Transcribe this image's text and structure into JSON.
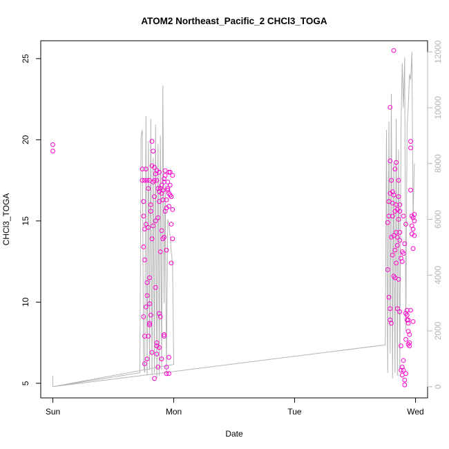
{
  "chart_data": {
    "type": "scatter",
    "title": "ATOM2 Northeast_Pacific_2 CHCl3_TOGA",
    "xlabel": "Date",
    "ylabel": "CHCl3_TOGA",
    "x_unit": "days since Sun 00:00",
    "xlim": [
      -0.1,
      3.1
    ],
    "ylim": [
      4.1,
      26.1
    ],
    "y2lim": [
      -400,
      12400
    ],
    "x_ticks": [
      {
        "value": 0,
        "label": "Sun"
      },
      {
        "value": 1,
        "label": "Mon"
      },
      {
        "value": 2,
        "label": "Tue"
      },
      {
        "value": 3,
        "label": "Wed"
      }
    ],
    "y_ticks": [
      5,
      10,
      15,
      20,
      25
    ],
    "y2_ticks": [
      0,
      2000,
      4000,
      6000,
      8000,
      10000,
      12000
    ],
    "colors": {
      "points": "#ff00cc",
      "line": "#b3b3b3",
      "axis": "#000000",
      "right_axis": "#b3b3b3"
    },
    "grid": false,
    "legend": "none",
    "series": [
      {
        "kind": "points",
        "axis": "left",
        "x": [
          0.0,
          0.0,
          0.74,
          0.74,
          0.75,
          0.75,
          0.75,
          0.75,
          0.76,
          0.76,
          0.76,
          0.76,
          0.77,
          0.77,
          0.77,
          0.78,
          0.78,
          0.78,
          0.79,
          0.79,
          0.79,
          0.8,
          0.8,
          0.8,
          0.8,
          0.81,
          0.81,
          0.81,
          0.82,
          0.82,
          0.82,
          0.83,
          0.83,
          0.83,
          0.84,
          0.84,
          0.84,
          0.85,
          0.85,
          0.85,
          0.86,
          0.86,
          0.86,
          0.87,
          0.87,
          0.87,
          0.88,
          0.88,
          0.88,
          0.89,
          0.89,
          0.89,
          0.9,
          0.9,
          0.9,
          0.91,
          0.91,
          0.91,
          0.92,
          0.92,
          0.92,
          0.93,
          0.93,
          0.93,
          0.94,
          0.94,
          0.94,
          0.95,
          0.95,
          0.95,
          0.96,
          0.96,
          0.96,
          0.97,
          0.97,
          0.97,
          0.98,
          0.98,
          0.98,
          0.99,
          0.99,
          0.99,
          0.76,
          0.78,
          0.8,
          0.82,
          0.86,
          0.88,
          0.9,
          0.92,
          0.94,
          0.96,
          0.84,
          0.86,
          0.88,
          0.92,
          0.94,
          0.96,
          2.77,
          2.77,
          2.78,
          2.78,
          2.78,
          2.79,
          2.79,
          2.79,
          2.8,
          2.8,
          2.8,
          2.81,
          2.81,
          2.81,
          2.82,
          2.82,
          2.82,
          2.83,
          2.83,
          2.83,
          2.84,
          2.84,
          2.84,
          2.85,
          2.85,
          2.85,
          2.86,
          2.86,
          2.86,
          2.87,
          2.87,
          2.87,
          2.88,
          2.88,
          2.88,
          2.89,
          2.89,
          2.89,
          2.9,
          2.9,
          2.9,
          2.91,
          2.91,
          2.91,
          2.92,
          2.92,
          2.92,
          2.93,
          2.93,
          2.93,
          2.94,
          2.94,
          2.94,
          2.95,
          2.95,
          2.95,
          2.96,
          2.96,
          2.96,
          2.97,
          2.97,
          2.97,
          2.98,
          2.98,
          2.98,
          2.99,
          2.99,
          2.99,
          2.84,
          2.79,
          2.82,
          2.86,
          2.87,
          2.9,
          2.92,
          2.94,
          2.96,
          2.98,
          2.79,
          2.81,
          2.83,
          2.85,
          2.87,
          2.89
        ],
        "y": [
          19.7,
          19.3,
          18.2,
          17.5,
          16.2,
          15.3,
          13.4,
          9.1,
          12.6,
          7.9,
          17.5,
          6.2,
          18.2,
          9.7,
          14.8,
          17.5,
          11.2,
          6.5,
          17.0,
          14.6,
          7.9,
          9.9,
          17.5,
          8.6,
          11.5,
          15.6,
          9.2,
          16.0,
          19.9,
          18.4,
          13.9,
          17.4,
          19.3,
          14.7,
          17.5,
          16.5,
          18.3,
          17.9,
          15.0,
          10.9,
          17.5,
          7.3,
          18.1,
          15.2,
          6.0,
          17.0,
          16.8,
          18.0,
          16.2,
          13.1,
          17.0,
          9.1,
          17.2,
          16.7,
          14.4,
          16.9,
          16.3,
          13.9,
          17.6,
          17.4,
          14.0,
          15.6,
          18.1,
          17.8,
          16.3,
          15.8,
          13.2,
          17.4,
          17.0,
          16.9,
          16.7,
          15.9,
          18.0,
          17.2,
          16.6,
          18.0,
          14.8,
          12.4,
          16.5,
          17.8,
          13.9,
          15.7,
          14.5,
          10.4,
          8.7,
          6.9,
          7.5,
          9.3,
          6.5,
          8.0,
          5.6,
          6.6,
          5.3,
          6.8,
          7.2,
          7.9,
          6.0,
          5.6,
          14.9,
          12.0,
          15.3,
          16.2,
          10.3,
          9.6,
          8.9,
          18.7,
          17.5,
          14.0,
          8.7,
          15.3,
          16.1,
          12.9,
          16.6,
          14.1,
          11.6,
          13.2,
          18.2,
          11.5,
          16.0,
          14.3,
          12.4,
          15.7,
          13.5,
          9.6,
          15.1,
          17.5,
          11.4,
          15.6,
          14.3,
          9.4,
          12.7,
          5.8,
          7.3,
          12.5,
          6.0,
          5.5,
          13.0,
          6.4,
          5.8,
          13.6,
          5.2,
          4.9,
          9.3,
          5.6,
          7.7,
          9.5,
          8.9,
          9.2,
          8.9,
          8.2,
          8.7,
          7.5,
          7.3,
          8.0,
          19.9,
          19.5,
          16.9,
          15.3,
          14.7,
          14.2,
          13.3,
          14.5,
          15.2,
          15.4,
          15.0,
          14.1,
          18.6,
          22.0,
          25.5,
          16.5,
          16.0,
          15.3,
          14.8,
          7.4,
          9.5,
          8.8,
          16.7,
          16.8,
          15.6,
          14.0,
          13.8,
          13.1
        ]
      },
      {
        "kind": "line",
        "axis": "right",
        "x": [
          0.0,
          0.0,
          0.72,
          0.73,
          0.74,
          0.75,
          0.76,
          0.77,
          0.78,
          0.79,
          0.8,
          0.81,
          0.82,
          0.83,
          0.84,
          0.85,
          0.86,
          0.87,
          0.88,
          0.89,
          0.9,
          0.91,
          0.92,
          0.93,
          0.94,
          0.95,
          0.96,
          0.97,
          0.98,
          0.99,
          1.0,
          0.0,
          2.75,
          2.76,
          2.77,
          2.78,
          2.79,
          2.8,
          2.81,
          2.82,
          2.83,
          2.84,
          2.85,
          2.86,
          2.87,
          2.88,
          2.89,
          2.9,
          2.91,
          2.92,
          2.93,
          2.94,
          2.95,
          2.96,
          2.97,
          2.98,
          2.99
        ],
        "y": [
          400,
          0,
          500,
          9000,
          9200,
          800,
          500,
          9700,
          400,
          8800,
          600,
          9600,
          400,
          8200,
          500,
          9400,
          300,
          8700,
          400,
          9000,
          600,
          10800,
          3000,
          7200,
          500,
          6000,
          5800,
          5400,
          4800,
          4400,
          800,
          0,
          1500,
          9200,
          500,
          9500,
          1200,
          10500,
          300,
          8000,
          500,
          9600,
          400,
          8500,
          600,
          9300,
          11600,
          10000,
          11800,
          2000,
          9300,
          10000,
          11200,
          11000,
          12000,
          6000,
          8000
        ]
      }
    ]
  }
}
